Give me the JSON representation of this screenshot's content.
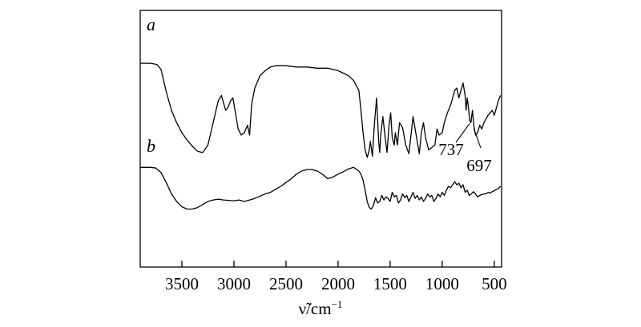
{
  "chart_data": {
    "type": "line",
    "title": "",
    "xlabel": "ν̃/cm",
    "xlabel_superscript": "−1",
    "ylabel": "",
    "xlim": [
      3900,
      430
    ],
    "x_reversed": true,
    "ticks": [
      3500,
      3000,
      2500,
      2000,
      1500,
      1000,
      500
    ],
    "tick_labels": [
      "3500",
      "3000",
      "2500",
      "2000",
      "1500",
      "1000",
      "500"
    ],
    "grid": false,
    "legend": "none",
    "y_scale": "transmittance (relative)",
    "series": [
      {
        "name": "a",
        "x": [
          3900,
          3800,
          3740,
          3700,
          3650,
          3600,
          3550,
          3500,
          3450,
          3400,
          3350,
          3300,
          3250,
          3200,
          3150,
          3120,
          3080,
          3060,
          3030,
          3010,
          2980,
          2960,
          2930,
          2900,
          2870,
          2850,
          2830,
          2800,
          2750,
          2700,
          2650,
          2600,
          2500,
          2400,
          2300,
          2200,
          2100,
          2000,
          1950,
          1900,
          1850,
          1800,
          1780,
          1760,
          1740,
          1720,
          1700,
          1690,
          1670,
          1650,
          1630,
          1610,
          1600,
          1590,
          1570,
          1550,
          1530,
          1510,
          1495,
          1480,
          1460,
          1450,
          1430,
          1410,
          1380,
          1350,
          1320,
          1300,
          1280,
          1250,
          1220,
          1200,
          1180,
          1160,
          1130,
          1100,
          1070,
          1050,
          1030,
          1000,
          980,
          950,
          920,
          900,
          880,
          860,
          840,
          820,
          800,
          780,
          770,
          760,
          750,
          737,
          725,
          710,
          697,
          680,
          660,
          640,
          620,
          600,
          580,
          560,
          540,
          520,
          500,
          480,
          460,
          440
        ],
        "y": [
          78,
          78,
          77,
          73,
          55,
          40,
          30,
          22,
          16,
          11,
          7,
          6,
          12,
          30,
          48,
          52,
          40,
          42,
          48,
          50,
          35,
          25,
          20,
          22,
          28,
          20,
          45,
          58,
          68,
          72,
          75,
          76,
          76,
          75,
          75,
          74,
          74,
          72,
          70,
          68,
          64,
          56,
          40,
          22,
          8,
          2,
          8,
          15,
          3,
          30,
          50,
          15,
          6,
          20,
          35,
          20,
          6,
          28,
          38,
          18,
          12,
          22,
          12,
          30,
          26,
          12,
          5,
          20,
          35,
          20,
          5,
          22,
          30,
          18,
          8,
          10,
          12,
          25,
          20,
          22,
          30,
          38,
          44,
          50,
          56,
          58,
          50,
          56,
          62,
          52,
          40,
          50,
          44,
          32,
          30,
          40,
          28,
          20,
          22,
          28,
          25,
          30,
          33,
          36,
          38,
          40,
          36,
          42,
          48,
          52
        ]
      },
      {
        "name": "b",
        "x": [
          3900,
          3800,
          3750,
          3700,
          3650,
          3600,
          3550,
          3500,
          3450,
          3400,
          3350,
          3300,
          3250,
          3200,
          3150,
          3100,
          3000,
          2950,
          2900,
          2850,
          2800,
          2750,
          2700,
          2650,
          2600,
          2550,
          2500,
          2450,
          2400,
          2350,
          2300,
          2250,
          2200,
          2150,
          2100,
          2050,
          2000,
          1950,
          1900,
          1850,
          1800,
          1780,
          1760,
          1740,
          1720,
          1700,
          1680,
          1660,
          1640,
          1620,
          1600,
          1580,
          1560,
          1540,
          1520,
          1500,
          1480,
          1460,
          1440,
          1420,
          1400,
          1380,
          1360,
          1340,
          1320,
          1300,
          1280,
          1260,
          1240,
          1220,
          1200,
          1180,
          1160,
          1140,
          1120,
          1100,
          1080,
          1060,
          1040,
          1020,
          1000,
          980,
          960,
          940,
          920,
          900,
          880,
          860,
          840,
          820,
          800,
          780,
          760,
          740,
          720,
          700,
          680,
          660,
          640,
          620,
          600,
          580,
          560,
          540,
          520,
          500,
          480,
          460,
          440
        ],
        "y": [
          85,
          85,
          84,
          78,
          65,
          50,
          40,
          33,
          30,
          30,
          32,
          36,
          40,
          42,
          43,
          42,
          41,
          42,
          40,
          42,
          44,
          47,
          50,
          52,
          56,
          60,
          65,
          70,
          76,
          80,
          82,
          82,
          80,
          76,
          70,
          72,
          76,
          79,
          83,
          85,
          80,
          76,
          68,
          55,
          40,
          32,
          30,
          35,
          45,
          38,
          40,
          48,
          42,
          46,
          44,
          40,
          52,
          46,
          48,
          38,
          42,
          50,
          45,
          48,
          40,
          46,
          52,
          44,
          48,
          42,
          46,
          40,
          44,
          50,
          46,
          48,
          40,
          44,
          50,
          46,
          52,
          48,
          55,
          60,
          58,
          62,
          66,
          62,
          64,
          58,
          62,
          52,
          55,
          48,
          50,
          53,
          50,
          46,
          48,
          49,
          50,
          50,
          52,
          51,
          53,
          54,
          56,
          57,
          60
        ]
      }
    ],
    "annotations": [
      {
        "text": "737",
        "x": 737
      },
      {
        "text": "697",
        "x": 697
      }
    ]
  }
}
